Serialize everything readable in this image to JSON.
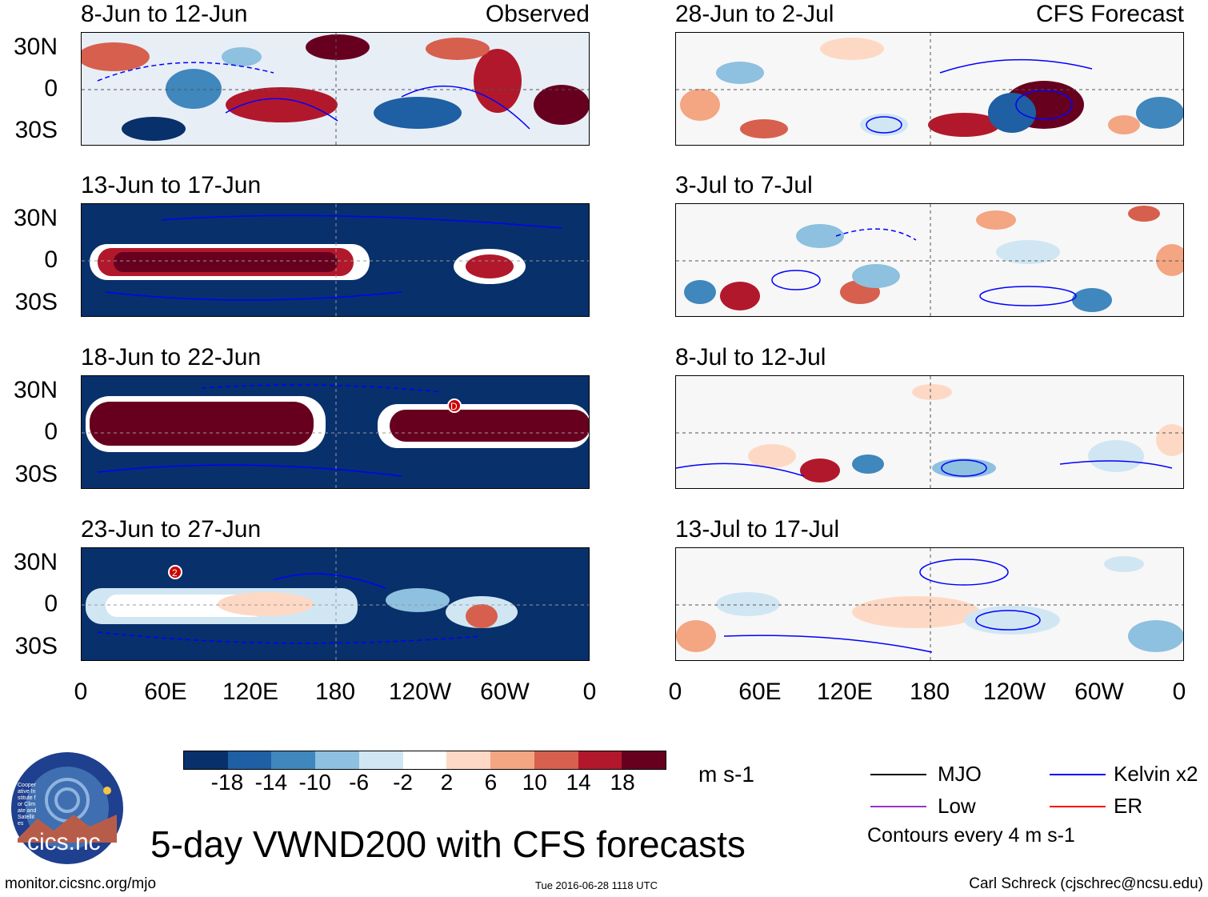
{
  "title": "5-day VWND200 with CFS forecasts",
  "panels_left": [
    {
      "period": "8-Jun to 12-Jun",
      "label": "Observed"
    },
    {
      "period": "13-Jun to 17-Jun",
      "label": ""
    },
    {
      "period": "18-Jun to 22-Jun",
      "label": ""
    },
    {
      "period": "23-Jun to 27-Jun",
      "label": ""
    }
  ],
  "panels_right": [
    {
      "period": "28-Jun to 2-Jul",
      "label": "CFS Forecast"
    },
    {
      "period": "3-Jul to 7-Jul",
      "label": ""
    },
    {
      "period": "8-Jul to 12-Jul",
      "label": ""
    },
    {
      "period": "13-Jul to 17-Jul",
      "label": ""
    }
  ],
  "lat_labels": [
    "30N",
    "0",
    "30S"
  ],
  "lon_labels": [
    "0",
    "60E",
    "120E",
    "180",
    "120W",
    "60W",
    "0"
  ],
  "colorbar": {
    "ticks": [
      "-18",
      "-14",
      "-10",
      "-6",
      "-2",
      "2",
      "6",
      "10",
      "14",
      "18"
    ],
    "colors": [
      "#08306b",
      "#1f5fa3",
      "#3f87bd",
      "#8ec0df",
      "#d1e6f3",
      "#ffffff",
      "#fdd9c5",
      "#f4a582",
      "#d6604d",
      "#b2182b",
      "#67001f"
    ],
    "units": "m s-1"
  },
  "legend": {
    "items": [
      {
        "label": "MJO",
        "color": "#000000"
      },
      {
        "label": "Kelvin x2",
        "color": "#0000ff"
      },
      {
        "label": "Low",
        "color": "#9933cc"
      },
      {
        "label": "ER",
        "color": "#ff0000"
      }
    ],
    "contour_note": "Contours every 4 m s-1"
  },
  "markers": {
    "tc1": "D",
    "tc2": "2"
  },
  "logo_text": "cics.nc",
  "logo_ring_text": "Cooperative Institute for Climate and Satellites",
  "footer": {
    "url": "monitor.cicsnc.org/mjo",
    "timestamp": "Tue 2016-06-28 1118 UTC",
    "credit": "Carl Schreck (cjschrec@ncsu.edu)"
  }
}
